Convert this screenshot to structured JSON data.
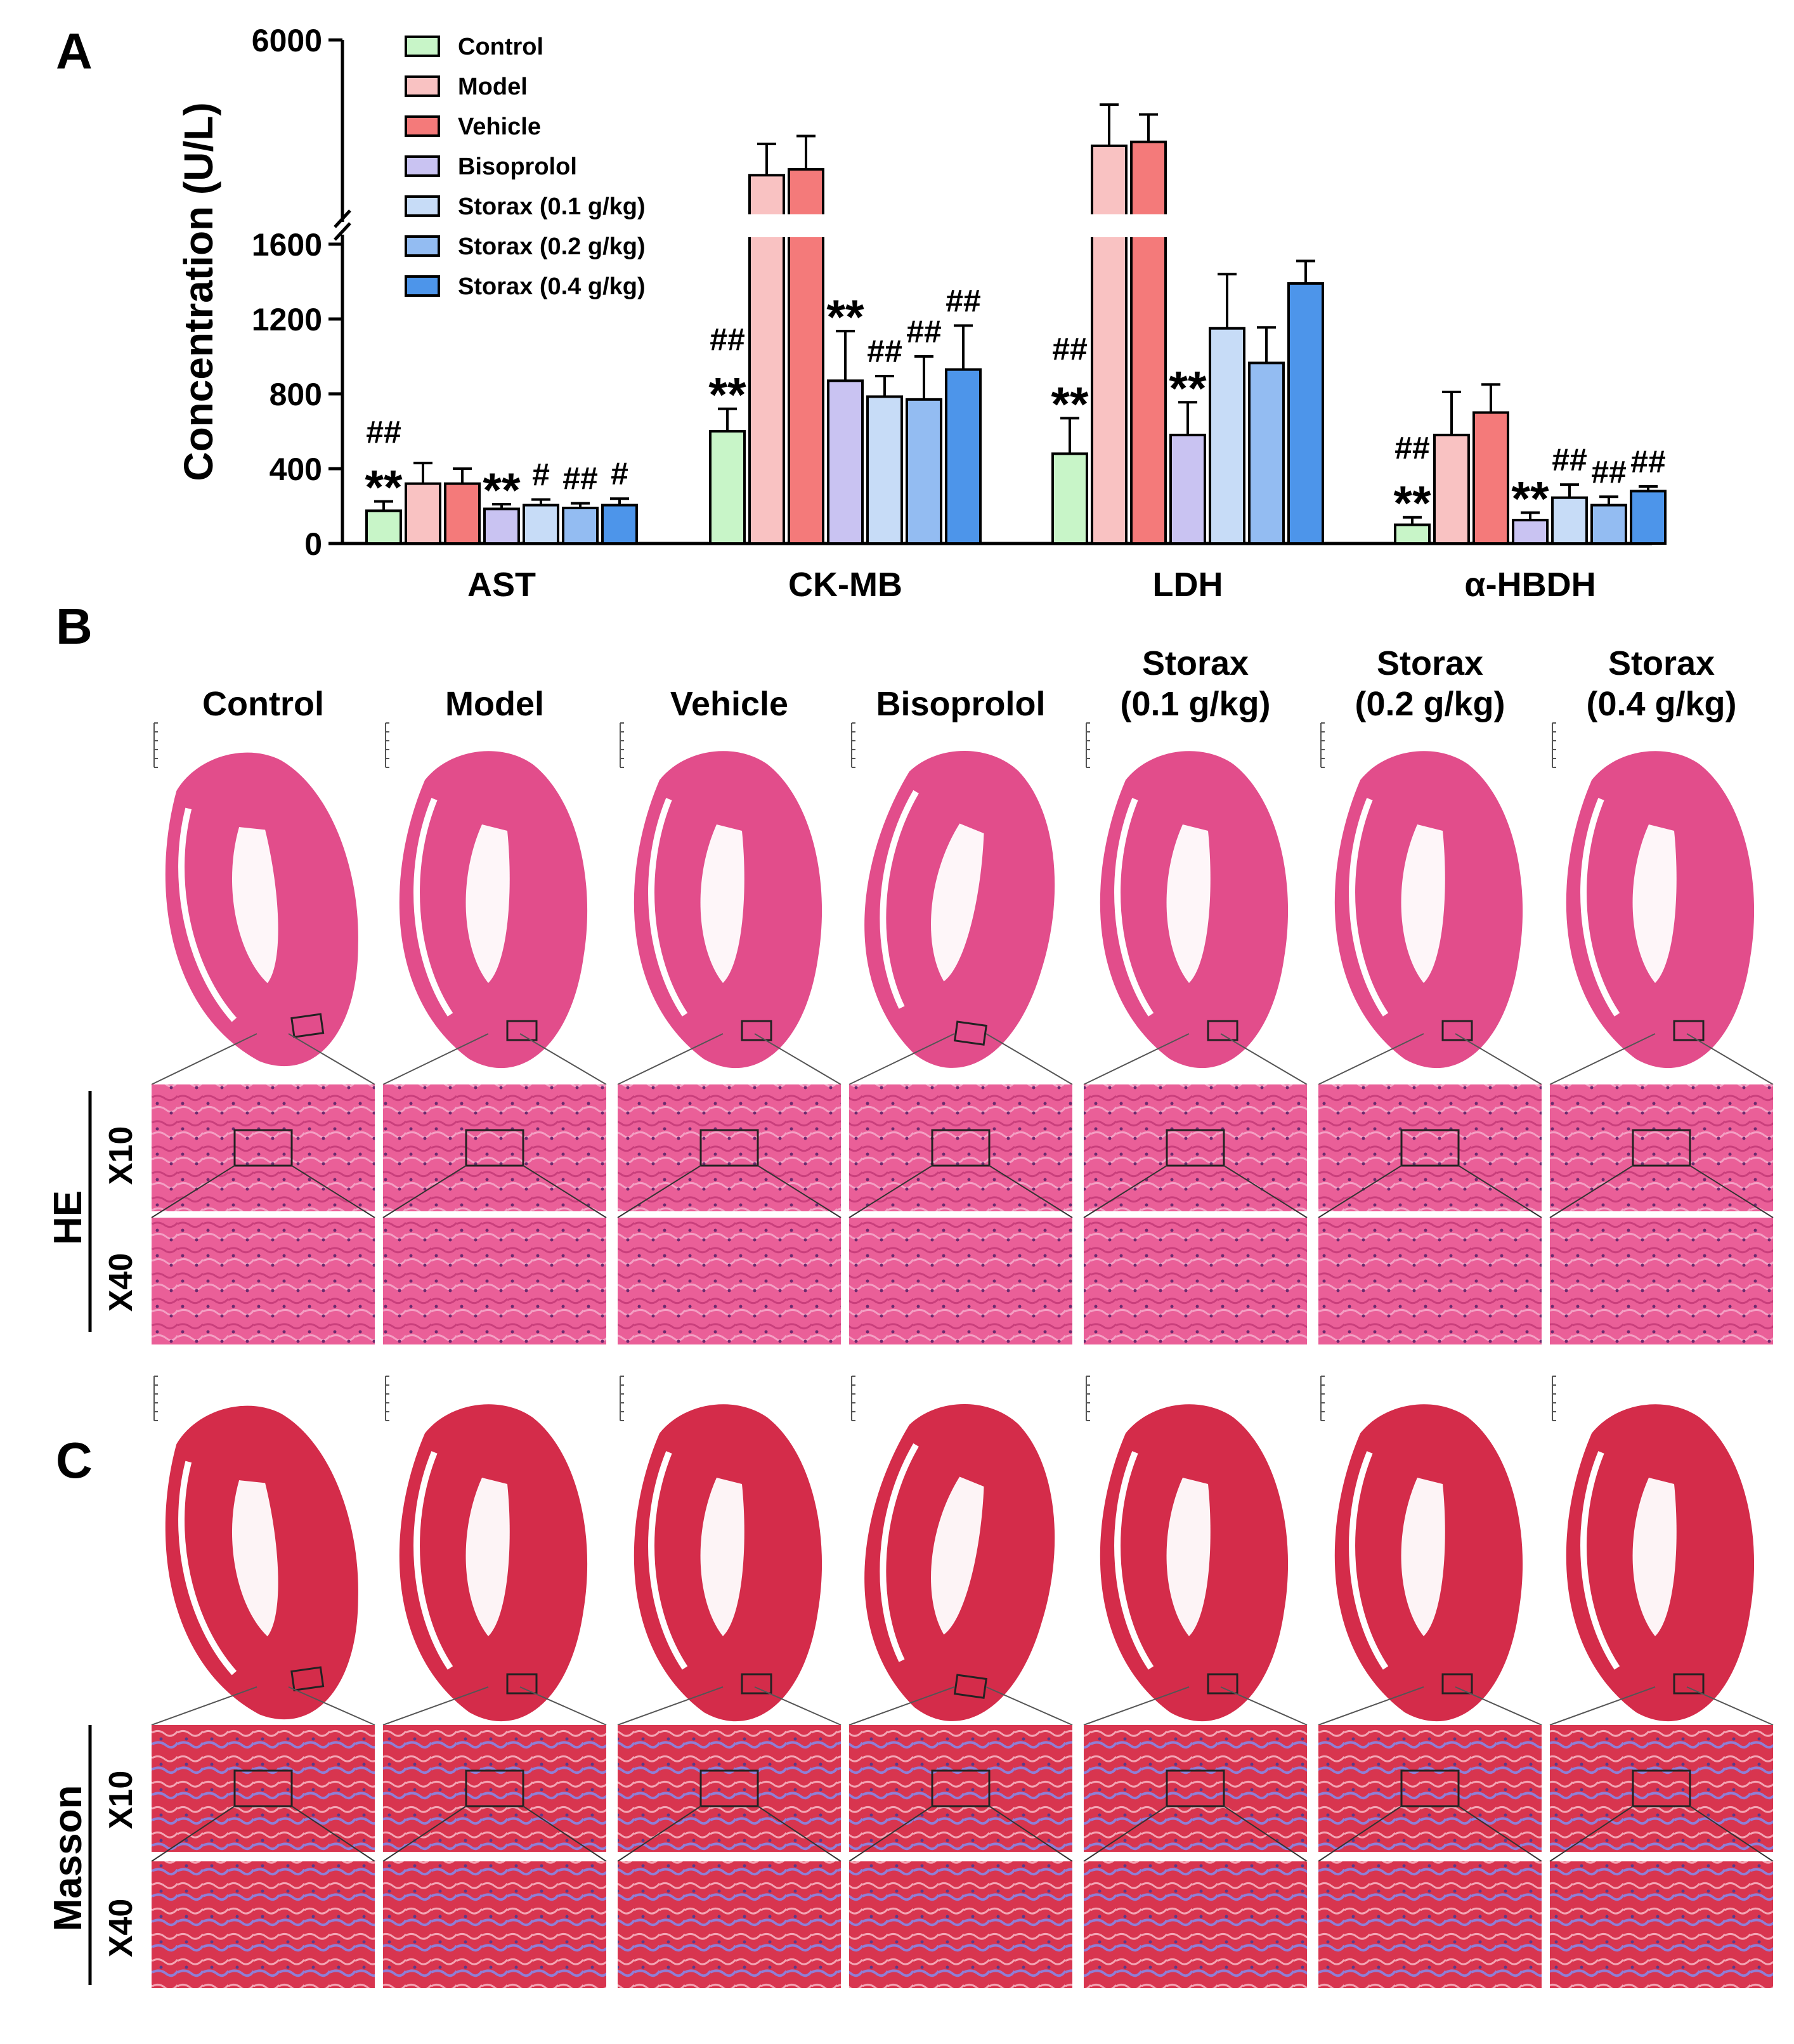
{
  "panel_labels": {
    "a": "A",
    "b": "B",
    "c": "C"
  },
  "colors": {
    "Control": "#c8f5c8",
    "Model": "#f9c2c2",
    "Vehicle": "#f47a7a",
    "Bisoprolol": "#c9c3f2",
    "Storax (0.1 g/kg)": "#c7dcf7",
    "Storax (0.2 g/kg)": "#93bcf2",
    "Storax (0.4 g/kg)": "#4d95ea",
    "he_tissue": "#e24d8b",
    "he_light": "#f28db5",
    "masson_red": "#d42c4a",
    "masson_blue": "#6f6fc7"
  },
  "chart_data": {
    "type": "bar",
    "ylabel": "Concentration (U/L)",
    "y_ticks_lower": [
      "0",
      "400",
      "800",
      "1200",
      "1600"
    ],
    "y_ticks_upper": [
      "6000"
    ],
    "ylim_lower": [
      0,
      1600
    ],
    "ylim_upper_label": 6000,
    "axis_break": true,
    "categories": [
      "AST",
      "CK-MB",
      "LDH",
      "α-HBDH"
    ],
    "legend": {
      "position": "top-left",
      "entries": [
        "Control",
        "Model",
        "Vehicle",
        "Bisoprolol",
        "Storax (0.1 g/kg)",
        "Storax (0.2 g/kg)",
        "Storax (0.4 g/kg)"
      ]
    },
    "series": [
      {
        "name": "Control",
        "values": [
          175,
          600,
          480,
          100
        ],
        "errors": [
          50,
          120,
          190,
          40
        ]
      },
      {
        "name": "Model",
        "values": [
          320,
          2550,
          3300,
          580
        ],
        "errors": [
          110,
          800,
          1050,
          230
        ]
      },
      {
        "name": "Vehicle",
        "values": [
          320,
          2700,
          3400,
          700
        ],
        "errors": [
          80,
          850,
          700,
          150
        ]
      },
      {
        "name": "Bisoprolol",
        "values": [
          185,
          870,
          580,
          125
        ],
        "errors": [
          25,
          265,
          175,
          40
        ]
      },
      {
        "name": "Storax (0.1 g/kg)",
        "values": [
          205,
          785,
          1150,
          245
        ],
        "errors": [
          30,
          110,
          290,
          70
        ]
      },
      {
        "name": "Storax (0.2 g/kg)",
        "values": [
          190,
          770,
          965,
          205
        ],
        "errors": [
          25,
          230,
          190,
          45
        ]
      },
      {
        "name": "Storax (0.4 g/kg)",
        "values": [
          205,
          930,
          1390,
          280
        ],
        "errors": [
          35,
          235,
          120,
          25
        ]
      }
    ],
    "annotations": [
      [
        "## **",
        "",
        "",
        "**",
        "#",
        "##",
        "#"
      ],
      [
        "## **",
        "",
        "",
        "**",
        "##",
        "##",
        "##"
      ],
      [
        "## **",
        "",
        "",
        "**",
        "",
        "",
        ""
      ],
      [
        "## **",
        "",
        "",
        "**",
        "##",
        "##",
        "##"
      ]
    ]
  },
  "panel_b": {
    "groups": [
      "Control",
      "Model",
      "Vehicle",
      "Bisoprolol",
      "Storax",
      "Storax",
      "Storax"
    ],
    "doses": [
      "",
      "",
      "",
      "",
      "(0.1 g/kg)",
      "(0.2 g/kg)",
      "(0.4 g/kg)"
    ],
    "stain": "HE",
    "mag_low": "X10",
    "mag_high": "X40"
  },
  "panel_c": {
    "stain": "Masson",
    "mag_low": "X10",
    "mag_high": "X40"
  }
}
